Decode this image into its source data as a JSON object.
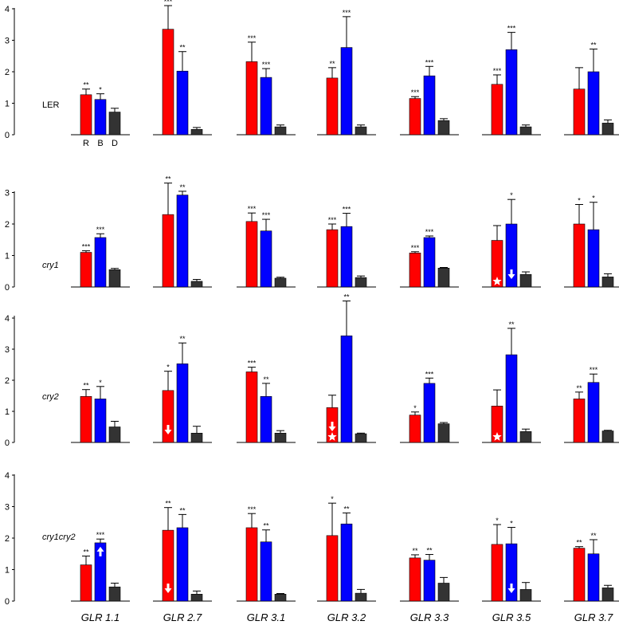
{
  "chart_data": {
    "type": "bar",
    "bar_legend": [
      "R",
      "B",
      "D"
    ],
    "colors": {
      "R": "#ff0000",
      "B": "#0000ff",
      "D": "#333333"
    },
    "genes": [
      "GLR 1.1",
      "GLR 2.7",
      "GLR 3.1",
      "GLR 3.2",
      "GLR 3.3",
      "GLR 3.5",
      "GLR 3.7"
    ],
    "panels": [
      {
        "label": "LER",
        "italic": false,
        "ylim": [
          0,
          4
        ],
        "ticks": [
          0,
          1,
          2,
          3,
          4
        ],
        "groups": [
          {
            "values": [
              1.27,
              1.12,
              0.72
            ],
            "errors": [
              0.18,
              0.18,
              0.12
            ],
            "stars": [
              "**",
              "*",
              ""
            ],
            "marks": [
              "",
              "",
              ""
            ]
          },
          {
            "values": [
              3.35,
              2.02,
              0.17
            ],
            "errors": [
              0.75,
              0.62,
              0.06
            ],
            "stars": [
              "***",
              "**",
              ""
            ],
            "marks": [
              "",
              "",
              ""
            ]
          },
          {
            "values": [
              2.32,
              1.82,
              0.25
            ],
            "errors": [
              0.62,
              0.28,
              0.06
            ],
            "stars": [
              "***",
              "***",
              ""
            ],
            "marks": [
              "",
              "",
              ""
            ]
          },
          {
            "values": [
              1.8,
              2.77,
              0.25
            ],
            "errors": [
              0.33,
              0.98,
              0.06
            ],
            "stars": [
              "**",
              "***",
              ""
            ],
            "marks": [
              "",
              "",
              ""
            ]
          },
          {
            "values": [
              1.15,
              1.87,
              0.45
            ],
            "errors": [
              0.06,
              0.3,
              0.06
            ],
            "stars": [
              "***",
              "***",
              ""
            ],
            "marks": [
              "",
              "",
              ""
            ]
          },
          {
            "values": [
              1.6,
              2.7,
              0.25
            ],
            "errors": [
              0.3,
              0.55,
              0.06
            ],
            "stars": [
              "***",
              "***",
              ""
            ],
            "marks": [
              "",
              "",
              ""
            ]
          },
          {
            "values": [
              1.45,
              2.0,
              0.37
            ],
            "errors": [
              0.68,
              0.72,
              0.1
            ],
            "stars": [
              "",
              "**",
              ""
            ],
            "marks": [
              "",
              "",
              ""
            ]
          }
        ]
      },
      {
        "label": "cry1",
        "italic": true,
        "ylim": [
          0,
          3
        ],
        "ticks": [
          0,
          1,
          2,
          3
        ],
        "groups": [
          {
            "values": [
              1.1,
              1.57,
              0.55
            ],
            "errors": [
              0.05,
              0.12,
              0.04
            ],
            "stars": [
              "***",
              "***",
              ""
            ],
            "marks": [
              "",
              "",
              ""
            ]
          },
          {
            "values": [
              2.3,
              2.92,
              0.18
            ],
            "errors": [
              1.0,
              0.12,
              0.06
            ],
            "stars": [
              "**",
              "**",
              ""
            ],
            "marks": [
              "",
              "",
              ""
            ]
          },
          {
            "values": [
              2.08,
              1.78,
              0.28
            ],
            "errors": [
              0.27,
              0.37,
              0.03
            ],
            "stars": [
              "***",
              "***",
              ""
            ],
            "marks": [
              "",
              "",
              ""
            ]
          },
          {
            "values": [
              1.82,
              1.92,
              0.3
            ],
            "errors": [
              0.18,
              0.42,
              0.05
            ],
            "stars": [
              "***",
              "***",
              ""
            ],
            "marks": [
              "",
              "",
              ""
            ]
          },
          {
            "values": [
              1.08,
              1.57,
              0.6
            ],
            "errors": [
              0.04,
              0.05,
              0.02
            ],
            "stars": [
              "***",
              "***",
              ""
            ],
            "marks": [
              "",
              "",
              ""
            ]
          },
          {
            "values": [
              1.48,
              2.0,
              0.4
            ],
            "errors": [
              0.47,
              0.78,
              0.08
            ],
            "stars": [
              "",
              "*",
              ""
            ],
            "marks": [
              "star",
              "down",
              ""
            ]
          },
          {
            "values": [
              2.0,
              1.82,
              0.32
            ],
            "errors": [
              0.62,
              0.87,
              0.1
            ],
            "stars": [
              "*",
              "*",
              ""
            ],
            "marks": [
              "",
              "",
              ""
            ]
          }
        ]
      },
      {
        "label": "cry2",
        "italic": true,
        "ylim": [
          0,
          4
        ],
        "ticks": [
          0,
          1,
          2,
          3,
          4
        ],
        "groups": [
          {
            "values": [
              1.48,
              1.4,
              0.5
            ],
            "errors": [
              0.22,
              0.4,
              0.18
            ],
            "stars": [
              "**",
              "*",
              ""
            ],
            "marks": [
              "",
              "",
              ""
            ]
          },
          {
            "values": [
              1.67,
              2.53,
              0.3
            ],
            "errors": [
              0.62,
              0.67,
              0.22
            ],
            "stars": [
              "*",
              "**",
              ""
            ],
            "marks": [
              "down",
              "",
              ""
            ]
          },
          {
            "values": [
              2.27,
              1.48,
              0.3
            ],
            "errors": [
              0.15,
              0.42,
              0.08
            ],
            "stars": [
              "***",
              "**",
              ""
            ],
            "marks": [
              "",
              "",
              ""
            ]
          },
          {
            "values": [
              1.12,
              3.43,
              0.28
            ],
            "errors": [
              0.4,
              1.12,
              0.02
            ],
            "stars": [
              "",
              "**",
              ""
            ],
            "marks": [
              "down-star",
              "",
              ""
            ]
          },
          {
            "values": [
              0.88,
              1.9,
              0.6
            ],
            "errors": [
              0.1,
              0.17,
              0.04
            ],
            "stars": [
              "*",
              "***",
              ""
            ],
            "marks": [
              "",
              "",
              ""
            ]
          },
          {
            "values": [
              1.17,
              2.82,
              0.35
            ],
            "errors": [
              0.52,
              0.85,
              0.08
            ],
            "stars": [
              "",
              "**",
              ""
            ],
            "marks": [
              "star",
              "",
              ""
            ]
          },
          {
            "values": [
              1.4,
              1.93,
              0.37
            ],
            "errors": [
              0.22,
              0.27,
              0.02
            ],
            "stars": [
              "**",
              "***",
              ""
            ],
            "marks": [
              "",
              "",
              ""
            ]
          }
        ]
      },
      {
        "label": "cry1cry2",
        "italic": true,
        "ylim": [
          0,
          4
        ],
        "ticks": [
          0,
          1,
          2,
          3,
          4
        ],
        "groups": [
          {
            "values": [
              1.15,
              1.85,
              0.45
            ],
            "errors": [
              0.28,
              0.12,
              0.12
            ],
            "stars": [
              "**",
              "***",
              ""
            ],
            "marks": [
              "",
              "up",
              ""
            ]
          },
          {
            "values": [
              2.25,
              2.33,
              0.22
            ],
            "errors": [
              0.72,
              0.42,
              0.1
            ],
            "stars": [
              "**",
              "**",
              ""
            ],
            "marks": [
              "down",
              "",
              ""
            ]
          },
          {
            "values": [
              2.33,
              1.88,
              0.22
            ],
            "errors": [
              0.45,
              0.38,
              0.02
            ],
            "stars": [
              "***",
              "**",
              ""
            ],
            "marks": [
              "",
              "",
              ""
            ]
          },
          {
            "values": [
              2.08,
              2.45,
              0.25
            ],
            "errors": [
              1.03,
              0.35,
              0.12
            ],
            "stars": [
              "*",
              "**",
              ""
            ],
            "marks": [
              "",
              "",
              ""
            ]
          },
          {
            "values": [
              1.37,
              1.3,
              0.57
            ],
            "errors": [
              0.1,
              0.18,
              0.18
            ],
            "stars": [
              "**",
              "**",
              ""
            ],
            "marks": [
              "",
              "",
              ""
            ]
          },
          {
            "values": [
              1.8,
              1.82,
              0.37
            ],
            "errors": [
              0.63,
              0.52,
              0.22
            ],
            "stars": [
              "*",
              "*",
              ""
            ],
            "marks": [
              "",
              "down",
              ""
            ]
          },
          {
            "values": [
              1.68,
              1.5,
              0.42
            ],
            "errors": [
              0.05,
              0.45,
              0.08
            ],
            "stars": [
              "**",
              "**",
              ""
            ],
            "marks": [
              "",
              "",
              ""
            ]
          }
        ]
      }
    ]
  }
}
